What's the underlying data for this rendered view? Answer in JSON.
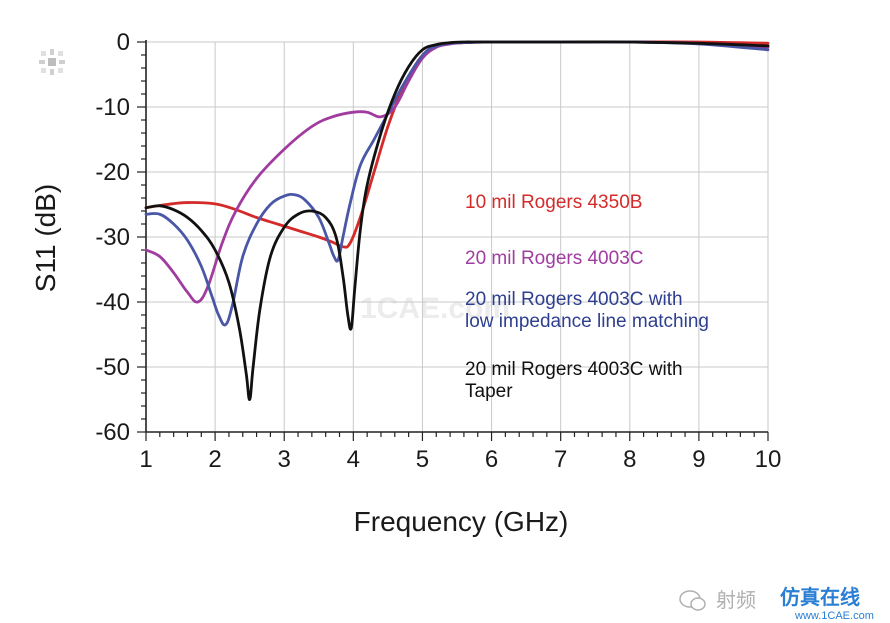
{
  "chart_data": {
    "type": "line",
    "title": "",
    "xlabel": "Frequency (GHz)",
    "ylabel": "S11 (dB)",
    "xlim": [
      1,
      10
    ],
    "ylim": [
      -60,
      0
    ],
    "xticks": [
      1,
      2,
      3,
      4,
      5,
      6,
      7,
      8,
      9,
      10
    ],
    "yticks": [
      0,
      -10,
      -20,
      -30,
      -40,
      -50,
      -60
    ],
    "grid": true,
    "legend_position": "center-right",
    "series": [
      {
        "name": "10 mil Rogers 4350B",
        "color": "#d42a2a",
        "x": [
          1.0,
          1.3,
          1.6,
          2.0,
          2.3,
          2.6,
          2.9,
          3.2,
          3.5,
          3.7,
          3.85,
          3.95,
          4.1,
          4.3,
          4.5,
          4.7,
          4.9,
          5.05,
          5.2,
          5.4,
          5.6,
          5.8,
          6.0,
          6.5,
          7.0,
          8.0,
          9.0,
          10.0
        ],
        "y": [
          -25.5,
          -25.0,
          -24.7,
          -24.9,
          -25.8,
          -27.0,
          -28.0,
          -29.0,
          -30.0,
          -30.8,
          -31.5,
          -31.0,
          -27.0,
          -20.0,
          -13.0,
          -7.5,
          -3.5,
          -1.5,
          -0.6,
          -0.2,
          -0.1,
          0.0,
          0.0,
          0.0,
          0.0,
          0.0,
          0.0,
          -0.2
        ]
      },
      {
        "name": "20 mil Rogers 4003C",
        "color": "#a03ca0",
        "x": [
          1.0,
          1.2,
          1.4,
          1.6,
          1.75,
          1.9,
          2.1,
          2.3,
          2.6,
          3.0,
          3.4,
          3.7,
          4.0,
          4.2,
          4.4,
          4.6,
          4.8,
          5.0,
          5.2,
          5.4,
          5.6,
          6.0,
          6.5,
          7.0,
          8.0,
          9.0,
          10.0
        ],
        "y": [
          -32.0,
          -33.0,
          -35.5,
          -38.5,
          -40.0,
          -37.5,
          -31.0,
          -26.0,
          -21.0,
          -16.5,
          -13.0,
          -11.5,
          -10.8,
          -10.8,
          -11.5,
          -10.0,
          -6.0,
          -2.5,
          -0.8,
          -0.3,
          -0.1,
          0.0,
          0.0,
          0.0,
          0.0,
          -0.2,
          -0.8
        ]
      },
      {
        "name": "20 mil Rogers 4003C with low impedance line matching",
        "color": "#4a56a6",
        "x": [
          1.0,
          1.2,
          1.4,
          1.6,
          1.8,
          1.95,
          2.05,
          2.15,
          2.25,
          2.4,
          2.6,
          2.8,
          3.0,
          3.15,
          3.3,
          3.5,
          3.65,
          3.72,
          3.78,
          3.85,
          3.95,
          4.1,
          4.3,
          4.5,
          4.7,
          4.9,
          5.05,
          5.2,
          5.4,
          5.6,
          6.0,
          7.0,
          8.0,
          9.0,
          10.0
        ],
        "y": [
          -26.5,
          -26.5,
          -28.0,
          -30.5,
          -34.5,
          -39.0,
          -42.0,
          -43.5,
          -40.5,
          -33.0,
          -28.0,
          -25.0,
          -23.7,
          -23.5,
          -24.3,
          -27.0,
          -31.0,
          -33.0,
          -33.5,
          -30.0,
          -25.0,
          -19.0,
          -15.0,
          -11.0,
          -7.0,
          -3.5,
          -1.5,
          -0.6,
          -0.2,
          -0.1,
          0.0,
          0.0,
          0.0,
          -0.3,
          -1.2
        ]
      },
      {
        "name": "20 mil Rogers 4003C with Taper",
        "color": "#111111",
        "x": [
          1.0,
          1.2,
          1.4,
          1.6,
          1.8,
          2.0,
          2.2,
          2.35,
          2.45,
          2.5,
          2.55,
          2.65,
          2.8,
          3.0,
          3.2,
          3.4,
          3.6,
          3.75,
          3.85,
          3.92,
          3.97,
          4.02,
          4.1,
          4.2,
          4.4,
          4.6,
          4.8,
          5.0,
          5.2,
          5.4,
          5.6,
          5.8,
          6.0,
          7.0,
          8.0,
          9.0,
          10.0
        ],
        "y": [
          -25.5,
          -25.2,
          -25.8,
          -27.0,
          -29.0,
          -32.0,
          -37.0,
          -44.0,
          -51.0,
          -55.0,
          -50.0,
          -41.0,
          -33.0,
          -28.5,
          -26.5,
          -26.0,
          -27.0,
          -30.0,
          -36.0,
          -42.0,
          -44.0,
          -38.0,
          -29.0,
          -22.0,
          -14.0,
          -8.0,
          -3.8,
          -1.2,
          -0.4,
          -0.1,
          0.0,
          0.0,
          0.0,
          0.0,
          0.0,
          -0.2,
          -0.6
        ]
      }
    ],
    "legend": [
      {
        "lines": [
          "10 mil Rogers 4350B"
        ],
        "color": "#d42a2a"
      },
      {
        "lines": [
          "20 mil Rogers 4003C"
        ],
        "color": "#a03ca0"
      },
      {
        "lines": [
          "20 mil Rogers 4003C with",
          "low impedance line matching"
        ],
        "color": "#2e3f8f"
      },
      {
        "lines": [
          "20 mil Rogers 4003C with",
          "Taper"
        ],
        "color": "#111111"
      }
    ]
  },
  "watermarks": {
    "center": "1CAE.com",
    "bottom_right_text": "射频",
    "bottom_right_brand": "仿真在线",
    "bottom_right_url": "www.1CAE.com"
  }
}
